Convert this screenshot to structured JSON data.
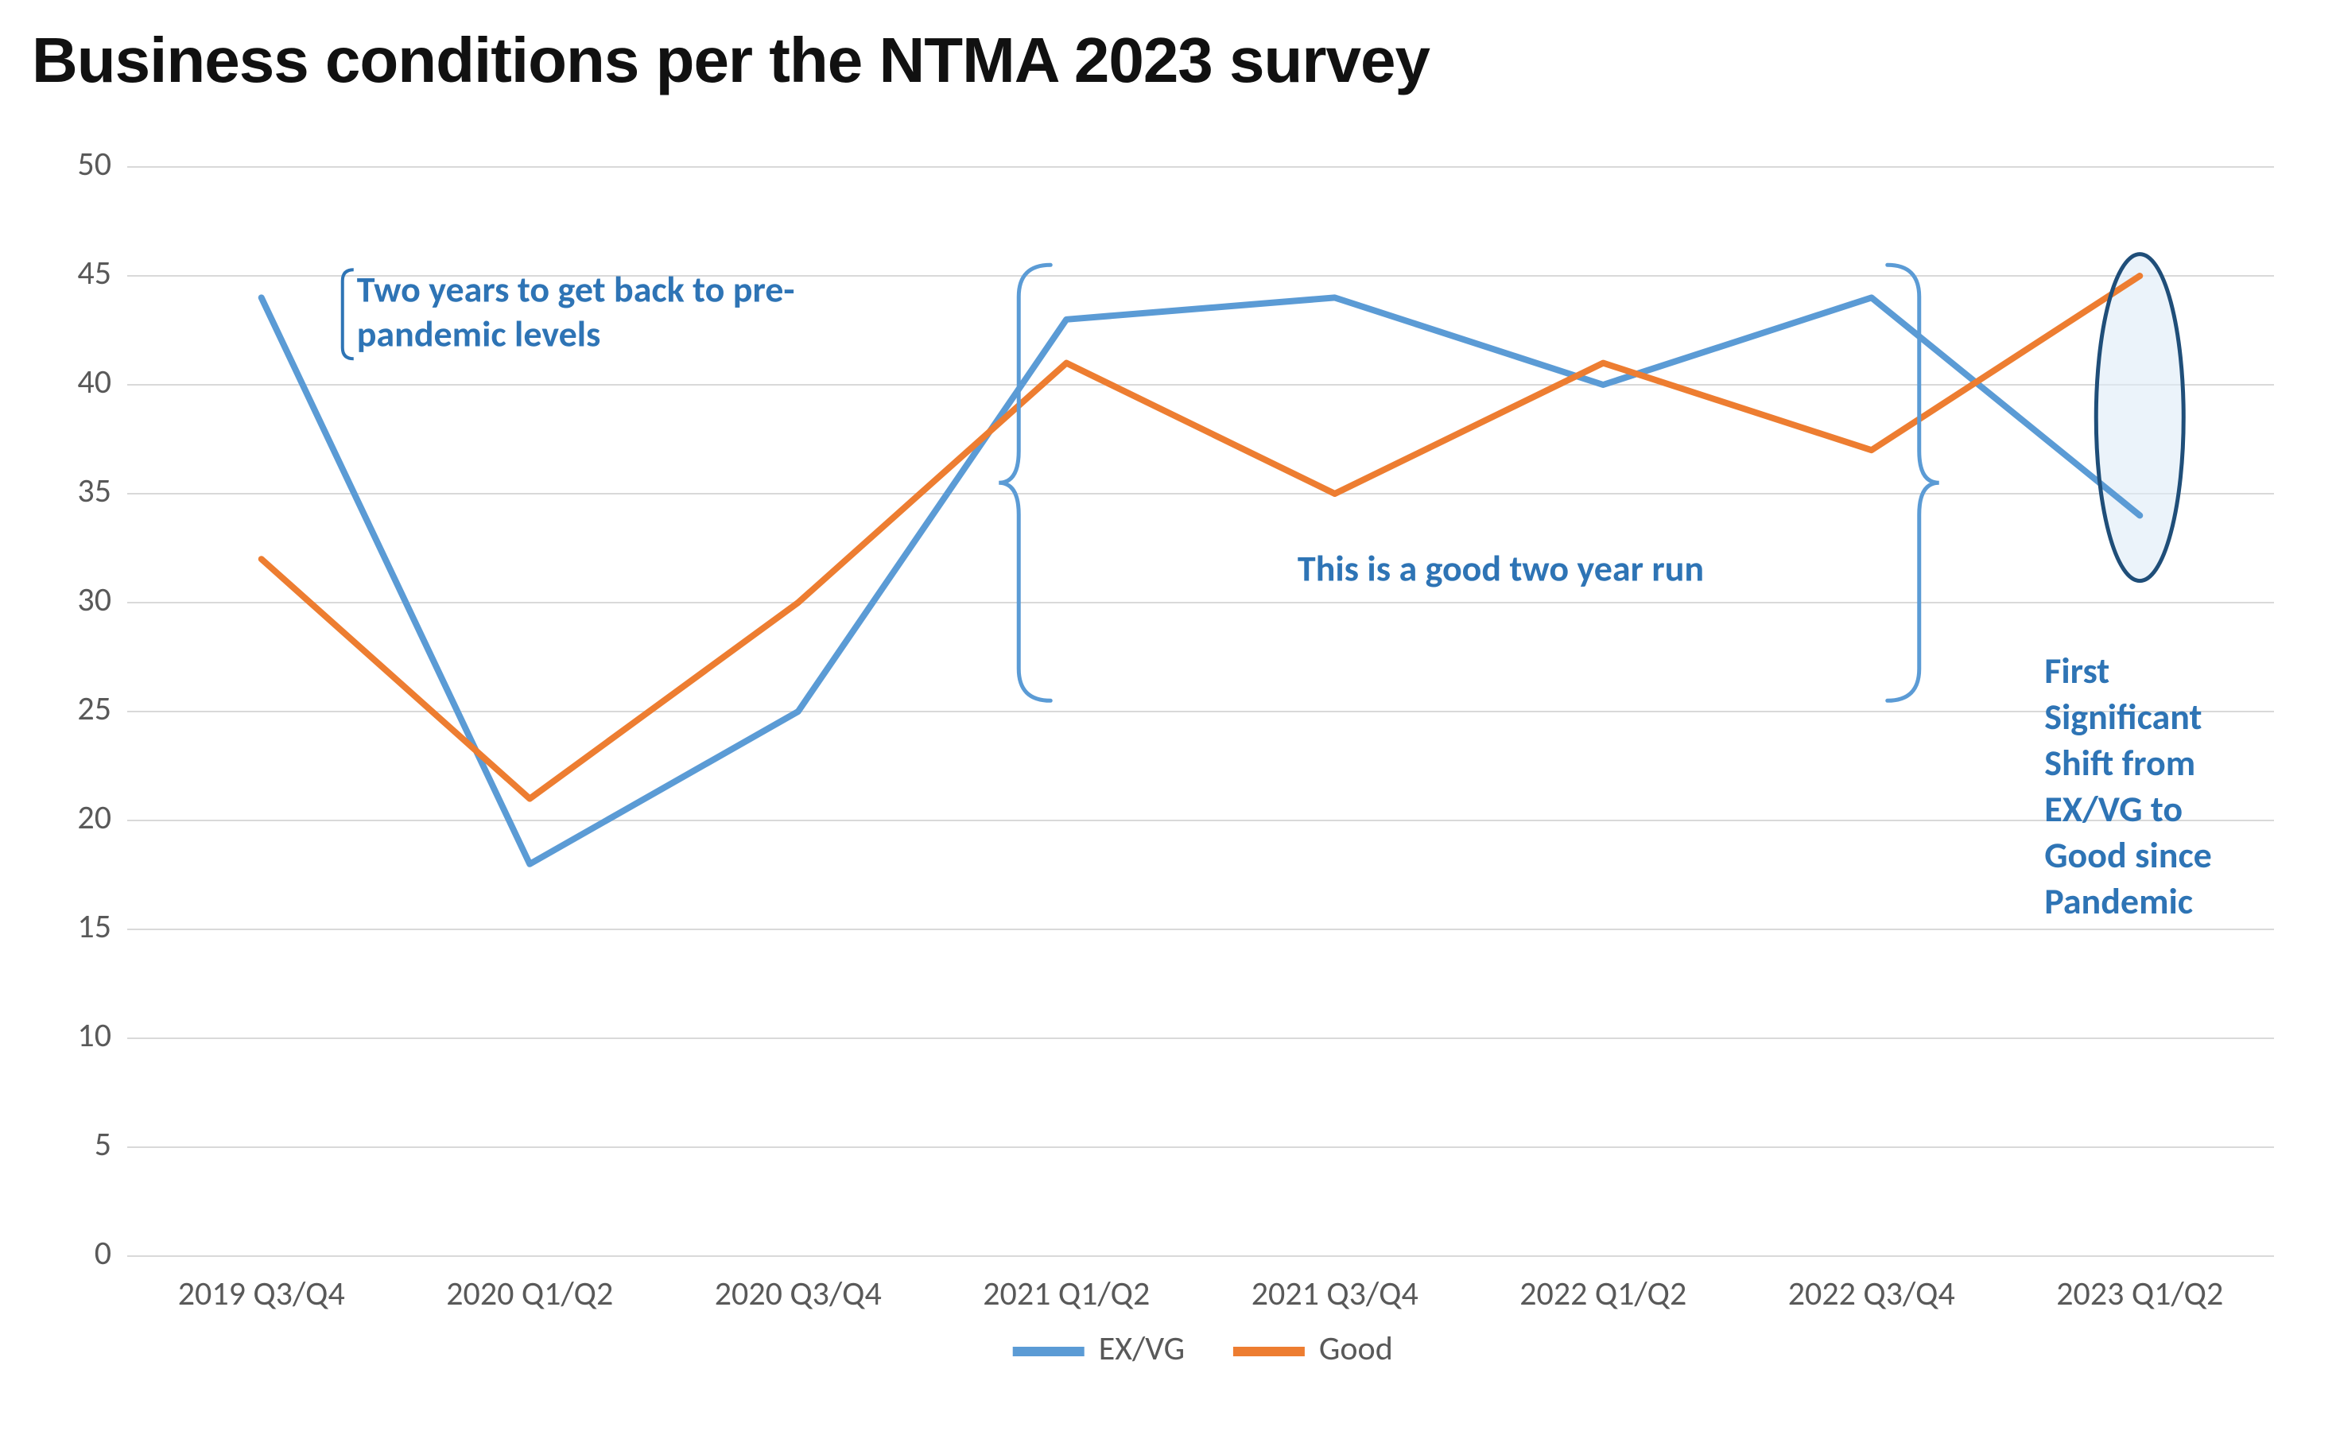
{
  "title": "Business conditions per the NTMA 2023 survey",
  "chart": {
    "type": "line",
    "background_color": "#ffffff",
    "grid_color": "#d9d9d9",
    "axis_text_color": "#595959",
    "title_fontsize": 80,
    "title_color": "#111111",
    "label_fontsize": 42,
    "legend_fontsize": 42,
    "annotation_fontsize": 46,
    "annotation_color": "#2e74b5",
    "line_width": 8,
    "ylim": [
      0,
      50
    ],
    "ytick_step": 5,
    "categories": [
      "2019 Q3/Q4",
      "2020 Q1/Q2",
      "2020 Q3/Q4",
      "2021 Q1/Q2",
      "2021 Q3/Q4",
      "2022 Q1/Q2",
      "2022 Q3/Q4",
      "2023 Q1/Q2"
    ],
    "series": [
      {
        "name": "EX/VG",
        "color": "#5b9bd5",
        "values": [
          44,
          18,
          25,
          43,
          44,
          40,
          44,
          34
        ]
      },
      {
        "name": "Good",
        "color": "#ed7d31",
        "values": [
          32,
          21,
          30,
          41,
          35,
          41,
          37,
          45
        ]
      }
    ],
    "annotations": [
      {
        "id": "pre-pandemic",
        "lines": [
          "Two years to get back to pre-",
          "pandemic levels"
        ]
      },
      {
        "id": "two-year-run",
        "lines": [
          "This is a good two year run"
        ]
      },
      {
        "id": "shift",
        "lines": [
          "First",
          "Significant",
          "Shift from",
          "EX/VG to",
          "Good since",
          "Pandemic"
        ]
      }
    ],
    "highlight_ellipse_color": "#1f4e79",
    "highlight_ellipse_fill": "#deebf7",
    "bracket_color": "#5b9bd5",
    "bracket_width": 5
  },
  "legend": {
    "items": [
      {
        "swatch_color": "#5b9bd5",
        "label": "EX/VG"
      },
      {
        "swatch_color": "#ed7d31",
        "label": "Good"
      }
    ]
  }
}
